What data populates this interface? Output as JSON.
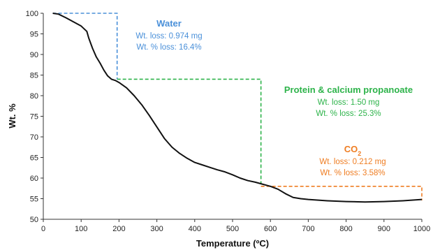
{
  "chart_data": {
    "type": "line",
    "title": "",
    "xlabel": "Temperature (ºC)",
    "ylabel": "Wt. %",
    "xlim": [
      0,
      1000
    ],
    "ylim": [
      50,
      100
    ],
    "xticks": [
      "0",
      "100",
      "200",
      "300",
      "400",
      "500",
      "600",
      "700",
      "800",
      "900",
      "1000"
    ],
    "yticks": [
      "50",
      "55",
      "60",
      "65",
      "70",
      "75",
      "80",
      "85",
      "90",
      "95",
      "100"
    ],
    "grid": false,
    "series_color": "#111111",
    "series": [
      {
        "x": [
          25,
          40,
          60,
          80,
          100,
          115,
          120,
          130,
          140,
          150,
          160,
          170,
          180,
          190,
          200,
          220,
          240,
          260,
          280,
          300,
          320,
          340,
          360,
          380,
          400,
          420,
          440,
          460,
          480,
          500,
          520,
          540,
          560,
          580,
          600,
          620,
          640,
          660,
          680,
          700,
          750,
          800,
          850,
          900,
          950,
          1000
        ],
        "y": [
          100,
          99.8,
          98.9,
          97.9,
          96.9,
          95.6,
          94.0,
          91.5,
          89.4,
          87.9,
          86.2,
          84.8,
          84.0,
          83.7,
          83.2,
          81.9,
          80.0,
          77.8,
          75.2,
          72.4,
          69.6,
          67.5,
          66.0,
          64.8,
          63.8,
          63.2,
          62.6,
          62.0,
          61.5,
          60.8,
          60.0,
          59.4,
          59.0,
          58.5,
          58.0,
          57.3,
          56.2,
          55.3,
          55.0,
          54.8,
          54.5,
          54.3,
          54.2,
          54.3,
          54.5,
          54.8
        ]
      }
    ],
    "steps": [
      {
        "name": "Water",
        "color": "#4a90d9",
        "t_start": 25,
        "t_end": 195,
        "wt_start": 100,
        "wt_end": 84,
        "loss_mg": "Wt. loss: 0.974 mg",
        "loss_pct": "Wt. % loss: 16.4%"
      },
      {
        "name": "Protein & calcium propanoate",
        "color": "#2db34a",
        "t_start": 195,
        "t_end": 575,
        "wt_start": 84,
        "wt_end": 58.6,
        "loss_mg": "Wt. loss: 1.50 mg",
        "loss_pct": "Wt. % loss: 25.3%"
      },
      {
        "name": "CO2",
        "color": "#ef7d22",
        "t_start": 575,
        "t_end": 1000,
        "wt_start": 58,
        "wt_end": 54.6,
        "loss_mg": "Wt. loss: 0.212 mg",
        "loss_pct": "Wt. % loss: 3.58%"
      }
    ]
  }
}
